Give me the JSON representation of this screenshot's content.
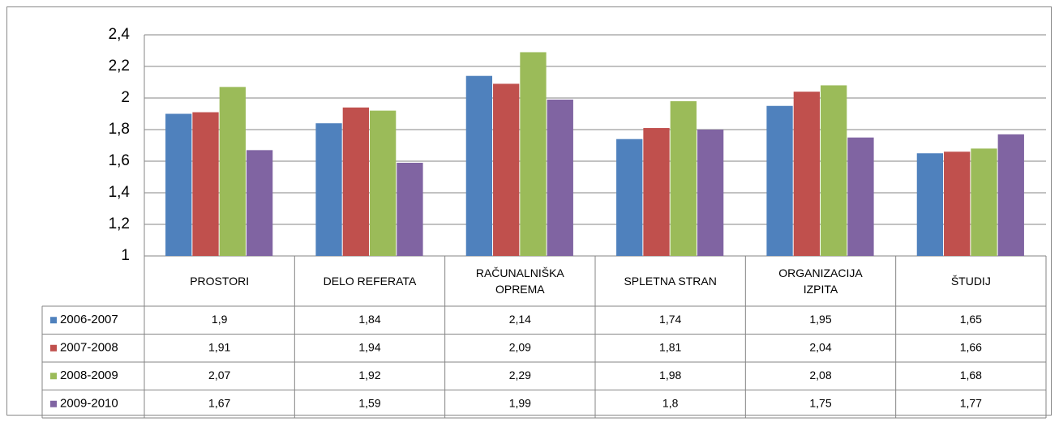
{
  "chart_data": {
    "type": "bar",
    "categories": [
      "PROSTORI",
      "DELO REFERATA",
      "RAČUNALNIŠKA OPREMA",
      "SPLETNA STRAN",
      "ORGANIZACIJA IZPITA",
      "ŠTUDIJ"
    ],
    "series": [
      {
        "name": "2006-2007",
        "color": "#4f81bd",
        "values": [
          1.9,
          1.84,
          2.14,
          1.74,
          1.95,
          1.65
        ],
        "value_labels": [
          "1,9",
          "1,84",
          "2,14",
          "1,74",
          "1,95",
          "1,65"
        ]
      },
      {
        "name": "2007-2008",
        "color": "#c0504d",
        "values": [
          1.91,
          1.94,
          2.09,
          1.81,
          2.04,
          1.66
        ],
        "value_labels": [
          "1,91",
          "1,94",
          "2,09",
          "1,81",
          "2,04",
          "1,66"
        ]
      },
      {
        "name": "2008-2009",
        "color": "#9bbb59",
        "values": [
          2.07,
          1.92,
          2.29,
          1.98,
          2.08,
          1.68
        ],
        "value_labels": [
          "2,07",
          "1,92",
          "2,29",
          "1,98",
          "2,08",
          "1,68"
        ]
      },
      {
        "name": "2009-2010",
        "color": "#8064a2",
        "values": [
          1.67,
          1.59,
          1.99,
          1.8,
          1.75,
          1.77
        ],
        "value_labels": [
          "1,67",
          "1,59",
          "1,99",
          "1,8",
          "1,75",
          "1,77"
        ]
      }
    ],
    "ylim": [
      1,
      2.4
    ],
    "yticks": [
      1,
      {
        "value": 1.2,
        "label": "1,2"
      },
      {
        "value": 1.4,
        "label": "1,4"
      },
      {
        "value": 1.6,
        "label": "1,6"
      },
      {
        "value": 1.8,
        "label": "1,8"
      },
      2,
      {
        "value": 2.2,
        "label": "2,2"
      },
      {
        "value": 2.4,
        "label": "2,4"
      }
    ],
    "grid": true
  }
}
